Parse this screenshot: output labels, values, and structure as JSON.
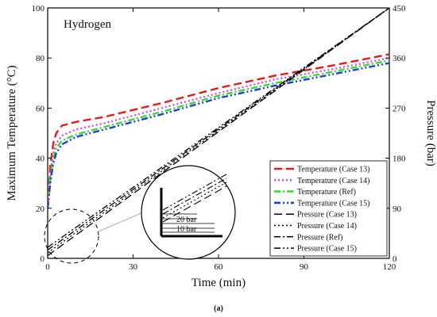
{
  "chart_data": {
    "type": "line",
    "caption": "(a)",
    "annotation": "Hydrogen",
    "xlabel": "Time (min)",
    "ylabel_left": "Maximum Temperature (°C)",
    "ylabel_right": "Pressure (bar)",
    "xlim": [
      0,
      120
    ],
    "ylim_left": [
      0,
      100
    ],
    "ylim_right": [
      0,
      450
    ],
    "xticks": [
      0,
      30,
      60,
      90,
      120
    ],
    "yticks_left": [
      0,
      20,
      40,
      60,
      80,
      100
    ],
    "yticks_right": [
      0,
      90,
      180,
      270,
      360,
      450
    ],
    "grid": false,
    "legend_position": "bottom-right",
    "inset_labels": [
      "20 bar",
      "10 bar"
    ],
    "series": [
      {
        "name": "Temperature (Case 13)",
        "axis": "left",
        "color": "#e41a1c",
        "dash": "long-dash",
        "points": [
          [
            0,
            20
          ],
          [
            1,
            38
          ],
          [
            2,
            46
          ],
          [
            3,
            50
          ],
          [
            5,
            53
          ],
          [
            10,
            54.5
          ],
          [
            20,
            56.5
          ],
          [
            40,
            62
          ],
          [
            60,
            68
          ],
          [
            80,
            73
          ],
          [
            100,
            77
          ],
          [
            120,
            81.5
          ]
        ]
      },
      {
        "name": "Temperature (Case 14)",
        "axis": "left",
        "color": "#e04ce0",
        "dash": "dot",
        "points": [
          [
            0,
            20
          ],
          [
            1,
            34
          ],
          [
            2,
            42
          ],
          [
            3,
            46
          ],
          [
            5,
            49
          ],
          [
            10,
            51.5
          ],
          [
            20,
            54
          ],
          [
            40,
            60
          ],
          [
            60,
            66
          ],
          [
            80,
            71.5
          ],
          [
            100,
            75.5
          ],
          [
            120,
            80
          ]
        ]
      },
      {
        "name": "Temperature (Ref)",
        "axis": "left",
        "color": "#33dd33",
        "dash": "dash-dot",
        "points": [
          [
            0,
            20
          ],
          [
            1,
            33
          ],
          [
            2,
            40
          ],
          [
            3,
            44
          ],
          [
            5,
            47
          ],
          [
            10,
            49.5
          ],
          [
            20,
            52.5
          ],
          [
            40,
            58.5
          ],
          [
            60,
            65
          ],
          [
            80,
            70
          ],
          [
            100,
            74.5
          ],
          [
            120,
            79
          ]
        ]
      },
      {
        "name": "Temperature (Case 15)",
        "axis": "left",
        "color": "#1f3fd6",
        "dash": "dash-dot-dot",
        "points": [
          [
            0,
            20
          ],
          [
            1,
            31
          ],
          [
            2,
            38
          ],
          [
            3,
            42
          ],
          [
            5,
            45.5
          ],
          [
            10,
            48.5
          ],
          [
            20,
            51.5
          ],
          [
            40,
            57.5
          ],
          [
            60,
            64
          ],
          [
            80,
            69
          ],
          [
            100,
            73.5
          ],
          [
            120,
            78
          ]
        ]
      },
      {
        "name": "Pressure (Case 13)",
        "axis": "right",
        "color": "#000000",
        "dash": "long-dash",
        "points": [
          [
            0,
            5
          ],
          [
            120,
            450
          ]
        ]
      },
      {
        "name": "Pressure (Case 14)",
        "axis": "right",
        "color": "#000000",
        "dash": "dot",
        "points": [
          [
            0,
            10
          ],
          [
            120,
            450
          ]
        ]
      },
      {
        "name": "Pressure (Ref)",
        "axis": "right",
        "color": "#000000",
        "dash": "dash-dot",
        "points": [
          [
            0,
            15
          ],
          [
            120,
            450
          ]
        ]
      },
      {
        "name": "Pressure (Case 15)",
        "axis": "right",
        "color": "#000000",
        "dash": "dash-dot-dot",
        "points": [
          [
            0,
            20
          ],
          [
            120,
            450
          ]
        ]
      }
    ]
  }
}
